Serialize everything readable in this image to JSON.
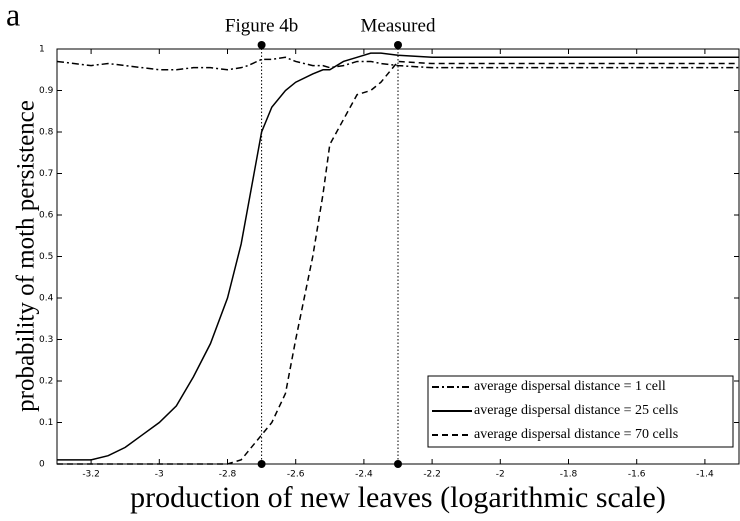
{
  "chart_data": {
    "type": "line",
    "panel_label": "a",
    "x_label": "production of new leaves (logarithmic scale)",
    "y_label": "probability of moth persistence",
    "x": [
      -3.3,
      -3.2,
      -3.15,
      -3.1,
      -3.05,
      -3,
      -2.95,
      -2.9,
      -2.85,
      -2.8,
      -2.76,
      -2.74,
      -2.7,
      -2.67,
      -2.63,
      -2.6,
      -2.55,
      -2.52,
      -2.5,
      -2.46,
      -2.42,
      -2.38,
      -2.35,
      -2.3,
      -2.2,
      -1.3
    ],
    "series": [
      {
        "name": "average dispersal distance = 1 cell",
        "color": "#000000",
        "dash": "dashdot",
        "values": [
          0.97,
          0.96,
          0.965,
          0.96,
          0.955,
          0.95,
          0.95,
          0.955,
          0.955,
          0.95,
          0.955,
          0.96,
          0.975,
          0.975,
          0.98,
          0.97,
          0.96,
          0.96,
          0.955,
          0.96,
          0.97,
          0.97,
          0.965,
          0.96,
          0.955,
          0.955
        ]
      },
      {
        "name": "average dispersal distance = 25 cells",
        "color": "#000000",
        "dash": "solid",
        "values": [
          0.01,
          0.01,
          0.02,
          0.04,
          0.07,
          0.1,
          0.14,
          0.21,
          0.29,
          0.4,
          0.53,
          0.62,
          0.8,
          0.86,
          0.9,
          0.92,
          0.94,
          0.95,
          0.95,
          0.97,
          0.98,
          0.99,
          0.99,
          0.985,
          0.98,
          0.98
        ]
      },
      {
        "name": "average dispersal distance = 70 cells",
        "color": "#000000",
        "dash": "dashed",
        "values": [
          0,
          0,
          0,
          0,
          0,
          0,
          0,
          0,
          0,
          0,
          0.01,
          0.03,
          0.07,
          0.1,
          0.17,
          0.3,
          0.5,
          0.65,
          0.77,
          0.83,
          0.89,
          0.9,
          0.92,
          0.97,
          0.965,
          0.965
        ]
      }
    ],
    "annotations": [
      {
        "label": "Figure 4b",
        "x": -2.7
      },
      {
        "label": "Measured",
        "x": -2.3
      }
    ],
    "xlim": [
      -3.3,
      -1.3
    ],
    "xticks": [
      -3.2,
      -3,
      -2.8,
      -2.6,
      -2.4,
      -2.2,
      -2,
      -1.8,
      -1.6,
      -1.4
    ],
    "ylim": [
      0,
      1
    ],
    "yticks": [
      0,
      0.1,
      0.2,
      0.3,
      0.4,
      0.5,
      0.6,
      0.7,
      0.8,
      0.9,
      1
    ],
    "grid": false,
    "legend": "lower right"
  }
}
